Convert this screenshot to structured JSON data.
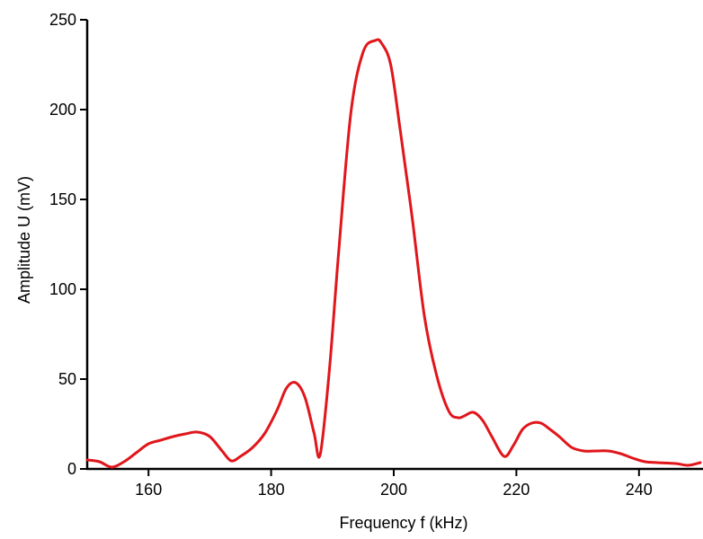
{
  "chart_data": {
    "type": "line",
    "title": "",
    "xlabel": "Frequency f (kHz)",
    "ylabel": "Amplitude U (mV)",
    "xlim": [
      150,
      250
    ],
    "ylim": [
      0,
      250
    ],
    "x_ticks": [
      160,
      180,
      200,
      220,
      240
    ],
    "y_ticks": [
      0,
      50,
      100,
      150,
      200,
      250
    ],
    "grid": false,
    "legend": "none",
    "series": [
      {
        "color": "#e0161b",
        "x": [
          150,
          152,
          154,
          156,
          158,
          160,
          162,
          164,
          166,
          168,
          170,
          172,
          173.5,
          175,
          177,
          179,
          181,
          182.5,
          184,
          185.5,
          187,
          188,
          189.5,
          191,
          193,
          195,
          197,
          198,
          199.5,
          201,
          203,
          205,
          207,
          209,
          210.5,
          211.5,
          213,
          214.5,
          216,
          218,
          219.5,
          221,
          222.5,
          224,
          225.5,
          227,
          229,
          231,
          233,
          235,
          237,
          239,
          241,
          243,
          246,
          248,
          250
        ],
        "y": [
          5,
          4,
          1,
          4,
          9,
          14,
          16,
          18,
          19.5,
          20.5,
          18,
          10,
          4.5,
          7,
          12,
          20,
          33,
          45,
          48,
          40,
          20,
          8,
          55,
          120,
          198,
          232,
          238.5,
          237,
          225,
          190,
          140,
          85,
          52,
          32,
          28.5,
          29.5,
          31.5,
          27,
          18,
          7,
          13,
          22,
          25.5,
          25.5,
          22,
          18,
          12,
          10,
          10,
          10,
          8.5,
          6,
          4,
          3.5,
          3,
          2,
          3.5
        ]
      }
    ]
  }
}
